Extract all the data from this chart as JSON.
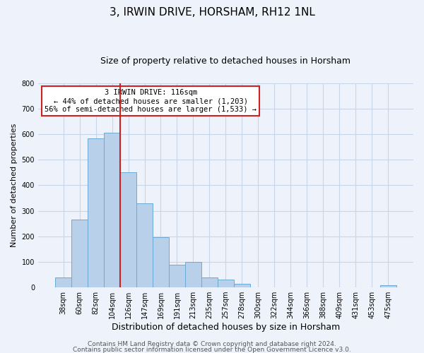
{
  "title": "3, IRWIN DRIVE, HORSHAM, RH12 1NL",
  "subtitle": "Size of property relative to detached houses in Horsham",
  "xlabel": "Distribution of detached houses by size in Horsham",
  "ylabel": "Number of detached properties",
  "bar_labels": [
    "38sqm",
    "60sqm",
    "82sqm",
    "104sqm",
    "126sqm",
    "147sqm",
    "169sqm",
    "191sqm",
    "213sqm",
    "235sqm",
    "257sqm",
    "278sqm",
    "300sqm",
    "322sqm",
    "344sqm",
    "366sqm",
    "388sqm",
    "409sqm",
    "431sqm",
    "453sqm",
    "475sqm"
  ],
  "bar_values": [
    38,
    265,
    585,
    605,
    452,
    330,
    197,
    90,
    100,
    38,
    32,
    14,
    0,
    0,
    0,
    0,
    0,
    0,
    0,
    0,
    8
  ],
  "bar_color": "#b8d0ea",
  "bar_edgecolor": "#6aaad4",
  "vline_color": "#cc2222",
  "vline_pos": 3.5,
  "ylim": [
    0,
    800
  ],
  "yticks": [
    0,
    100,
    200,
    300,
    400,
    500,
    600,
    700,
    800
  ],
  "annotation_title": "3 IRWIN DRIVE: 116sqm",
  "annotation_line1": "← 44% of detached houses are smaller (1,203)",
  "annotation_line2": "56% of semi-detached houses are larger (1,533) →",
  "annotation_box_color": "#cc2222",
  "grid_color": "#c8d4e8",
  "background_color": "#eef2fa",
  "footer_line1": "Contains HM Land Registry data © Crown copyright and database right 2024.",
  "footer_line2": "Contains public sector information licensed under the Open Government Licence v3.0.",
  "title_fontsize": 11,
  "subtitle_fontsize": 9,
  "xlabel_fontsize": 9,
  "ylabel_fontsize": 8,
  "tick_fontsize": 7,
  "annotation_fontsize": 7.5,
  "footer_fontsize": 6.5
}
